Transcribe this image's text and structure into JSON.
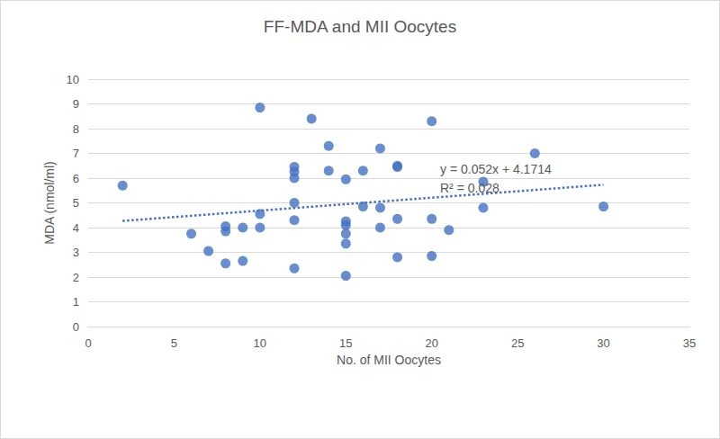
{
  "chart_data": {
    "type": "scatter",
    "title": "FF-MDA and MII Oocytes",
    "x_label": "No. of MII Oocytes",
    "y_label": "MDA (nmol/ml)",
    "color": "#4472c4",
    "marker": "circle",
    "x": [
      2,
      6,
      7,
      8,
      8,
      8,
      9,
      9,
      10,
      10,
      10,
      12,
      12,
      12,
      12,
      12,
      12,
      13,
      14,
      14,
      15,
      15,
      15,
      15,
      15,
      15,
      16,
      16,
      17,
      17,
      17,
      18,
      18,
      18,
      18,
      20,
      20,
      20,
      21,
      23,
      23,
      26,
      30
    ],
    "values": [
      5.7,
      3.75,
      3.05,
      4.05,
      3.85,
      2.55,
      4.0,
      2.65,
      8.85,
      4.55,
      4.0,
      6.45,
      6.25,
      6.0,
      5.0,
      4.3,
      2.35,
      8.4,
      7.3,
      6.3,
      5.95,
      4.25,
      4.1,
      3.75,
      3.35,
      2.05,
      6.3,
      4.85,
      7.2,
      4.8,
      4.0,
      6.5,
      6.45,
      4.35,
      2.8,
      8.3,
      4.35,
      2.85,
      3.9,
      5.85,
      4.8,
      7.0,
      4.85
    ],
    "trendline": {
      "type": "line",
      "x": [
        2,
        30
      ],
      "values": [
        4.27,
        5.73
      ],
      "color": "#4472c4",
      "line_style": "dotted"
    },
    "annotations": [
      "y = 0.052x + 4.1714",
      "R² = 0.028"
    ],
    "xlim": [
      0,
      35
    ],
    "xticks": [
      0,
      5,
      10,
      15,
      20,
      25,
      30,
      35
    ],
    "ylim": [
      0,
      10
    ],
    "yticks": [
      0,
      1,
      2,
      3,
      4,
      5,
      6,
      7,
      8,
      9,
      10
    ],
    "grid": true
  }
}
